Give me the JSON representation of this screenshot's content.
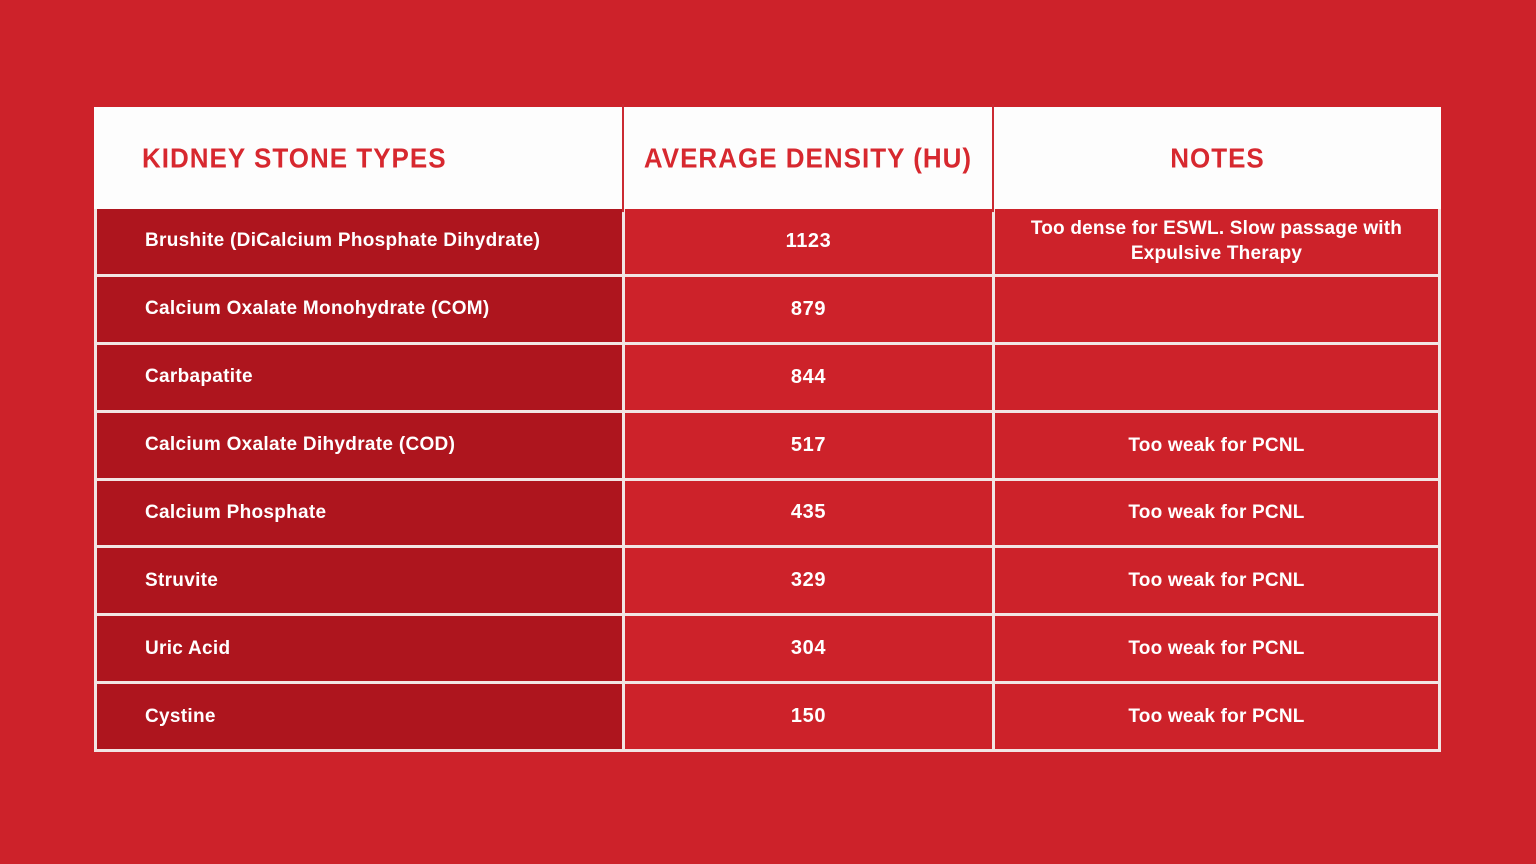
{
  "page": {
    "background_color": "#CD222A"
  },
  "colors": {
    "header_bg": "#FDFDFD",
    "header_text": "#D7282F",
    "type_column_bg": "#AE151E",
    "value_column_bg": "#CD222A",
    "grid_line": "#F2E5E4",
    "body_text": "#FFFFFF"
  },
  "chart_data": {
    "type": "table",
    "columns": [
      "KIDNEY STONE TYPES",
      "AVERAGE DENSITY (HU)",
      "NOTES"
    ],
    "rows": [
      {
        "type": "Brushite (DiCalcium Phosphate Dihydrate)",
        "density": 1123,
        "notes": "Too dense for ESWL. Slow passage with Expulsive Therapy"
      },
      {
        "type": "Calcium Oxalate Monohydrate (COM)",
        "density": 879,
        "notes": ""
      },
      {
        "type": "Carbapatite",
        "density": 844,
        "notes": ""
      },
      {
        "type": "Calcium Oxalate Dihydrate (COD)",
        "density": 517,
        "notes": "Too weak for PCNL"
      },
      {
        "type": "Calcium Phosphate",
        "density": 435,
        "notes": "Too weak for PCNL"
      },
      {
        "type": "Struvite",
        "density": 329,
        "notes": "Too weak for PCNL"
      },
      {
        "type": "Uric Acid",
        "density": 304,
        "notes": "Too weak for PCNL"
      },
      {
        "type": "Cystine",
        "density": 150,
        "notes": "Too weak for PCNL"
      }
    ]
  }
}
